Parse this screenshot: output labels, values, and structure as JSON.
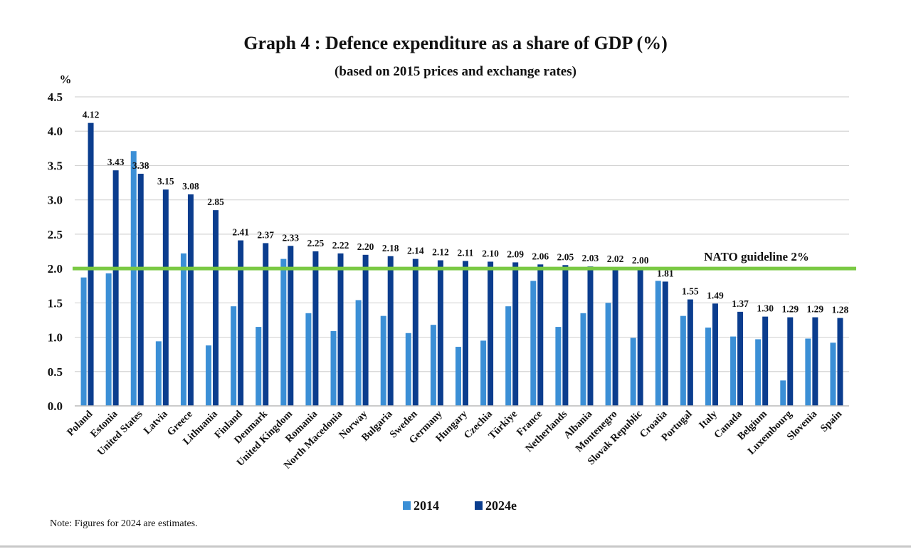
{
  "title": "Graph 4 : Defence expenditure as a share of GDP (%)",
  "subtitle": "(based on 2015 prices and exchange rates)",
  "note": "Note: Figures for 2024 are estimates.",
  "colors": {
    "series_2014": "#3b8fd6",
    "series_2024": "#0b3d8e",
    "guideline": "#7ac943",
    "grid": "#d4d4d4"
  },
  "chart_data": {
    "type": "bar",
    "ylabel": "%",
    "ylim": [
      0,
      4.5
    ],
    "yticks": [
      "0.0",
      "0.5",
      "1.0",
      "1.5",
      "2.0",
      "2.5",
      "3.0",
      "3.5",
      "4.0",
      "4.5"
    ],
    "grid": true,
    "legend_position": "bottom",
    "categories": [
      "Poland",
      "Estonia",
      "United States",
      "Latvia",
      "Greece",
      "Lithuania",
      "Finland",
      "Denmark",
      "United Kingdom",
      "Romania",
      "North Macedonia",
      "Norway",
      "Bulgaria",
      "Sweden",
      "Germany",
      "Hungary",
      "Czechia",
      "Türkiye",
      "France",
      "Netherlands",
      "Albania",
      "Montenegro",
      "Slovak Republic",
      "Croatia",
      "Portugal",
      "Italy",
      "Canada",
      "Belgium",
      "Luxembourg",
      "Slovenia",
      "Spain"
    ],
    "series": [
      {
        "name": "2014",
        "values": [
          1.87,
          1.93,
          3.71,
          0.94,
          2.22,
          0.88,
          1.45,
          1.15,
          2.14,
          1.35,
          1.09,
          1.54,
          1.31,
          1.06,
          1.18,
          0.86,
          0.95,
          1.45,
          1.82,
          1.15,
          1.35,
          1.5,
          0.99,
          1.82,
          1.31,
          1.14,
          1.01,
          0.97,
          0.37,
          0.98,
          0.92
        ]
      },
      {
        "name": "2024e",
        "values": [
          4.12,
          3.43,
          3.38,
          3.15,
          3.08,
          2.85,
          2.41,
          2.37,
          2.33,
          2.25,
          2.22,
          2.2,
          2.18,
          2.14,
          2.12,
          2.11,
          2.1,
          2.09,
          2.06,
          2.05,
          2.03,
          2.02,
          2.0,
          1.81,
          1.55,
          1.49,
          1.37,
          1.3,
          1.29,
          1.29,
          1.28
        ],
        "data_labels": [
          "4.12",
          "3.43",
          "3.38",
          "3.15",
          "3.08",
          "2.85",
          "2.41",
          "2.37",
          "2.33",
          "2.25",
          "2.22",
          "2.20",
          "2.18",
          "2.14",
          "2.12",
          "2.11",
          "2.10",
          "2.09",
          "2.06",
          "2.05",
          "2.03",
          "2.02",
          "2.00",
          "1.81",
          "1.55",
          "1.49",
          "1.37",
          "1.30",
          "1.29",
          "1.29",
          "1.28"
        ]
      }
    ],
    "reference_line": {
      "value": 2.0,
      "label": "NATO guideline 2%"
    }
  }
}
